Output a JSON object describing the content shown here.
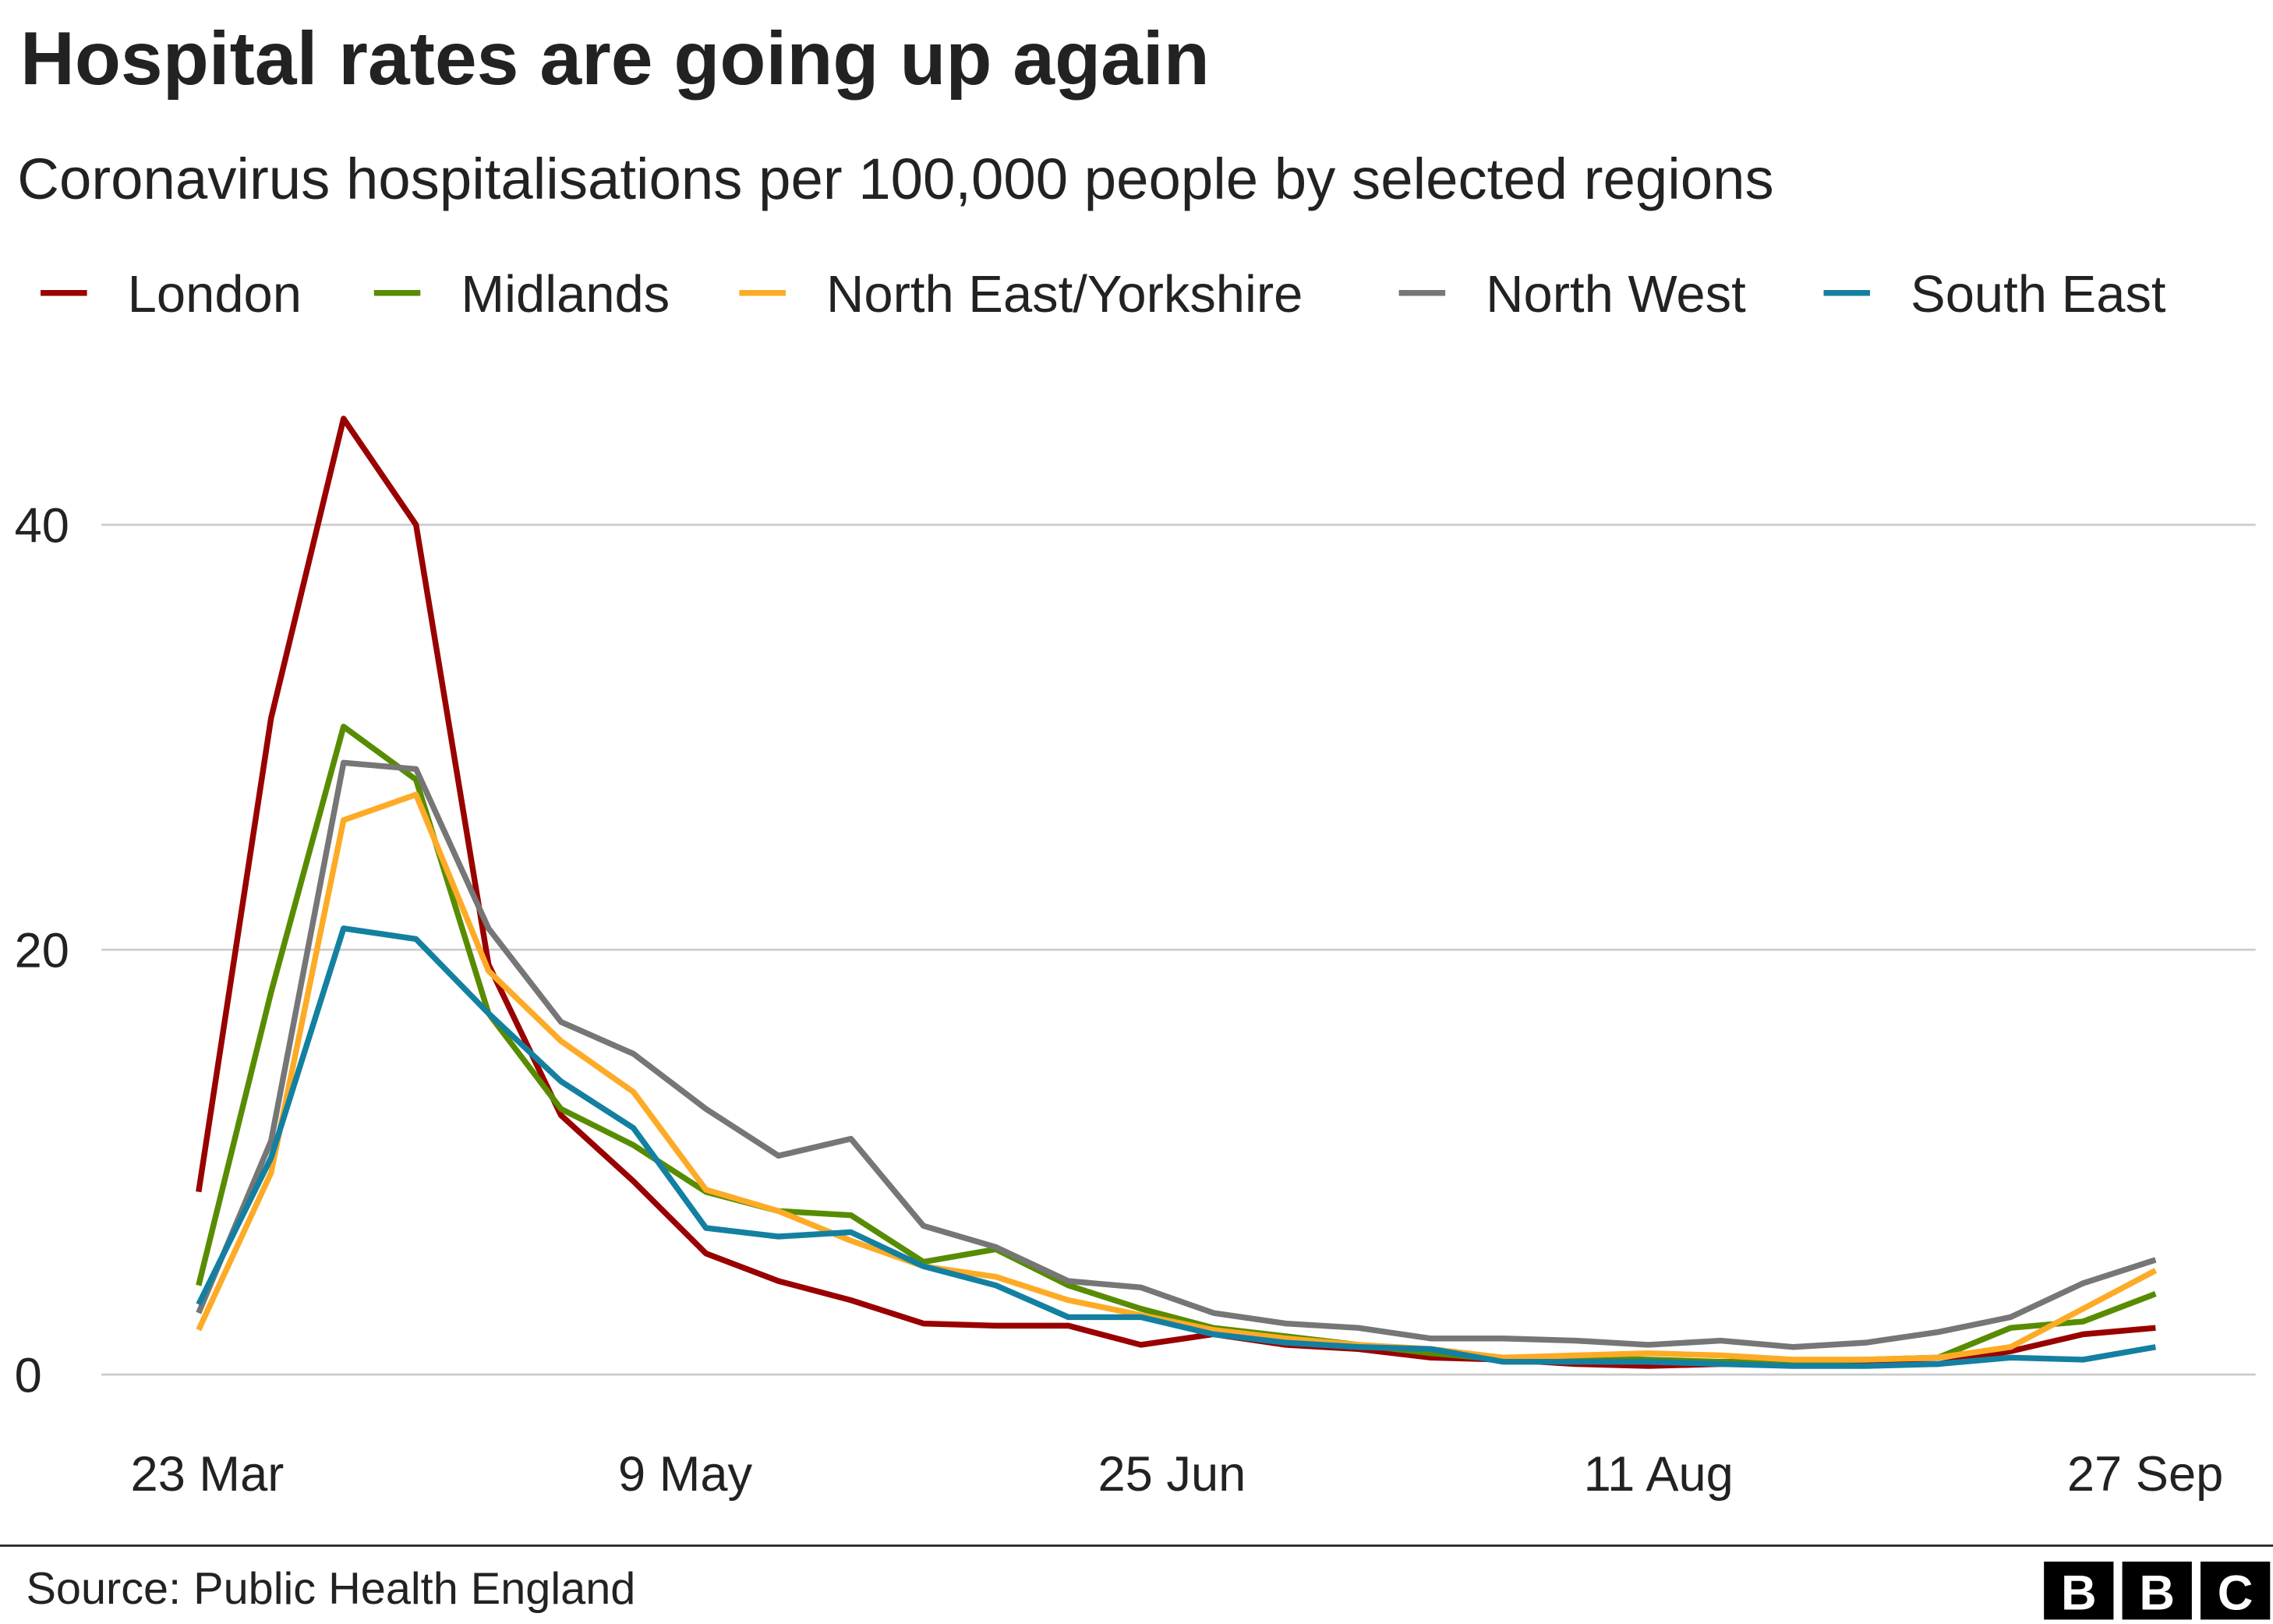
{
  "chart_data": {
    "type": "line",
    "title": "Hospital rates are going up again",
    "subtitle": "Coronavirus hospitalisations per 100,000 people by selected regions",
    "source": "Source: Public Health England",
    "logo": [
      "B",
      "B",
      "C"
    ],
    "x": [
      "23 Mar",
      "30 Mar",
      "6 Apr",
      "13 Apr",
      "20 Apr",
      "27 Apr",
      "4 May",
      "11 May",
      "18 May",
      "25 May",
      "1 Jun",
      "8 Jun",
      "15 Jun",
      "22 Jun",
      "29 Jun",
      "6 Jul",
      "13 Jul",
      "20 Jul",
      "27 Jul",
      "3 Aug",
      "10 Aug",
      "17 Aug",
      "24 Aug",
      "31 Aug",
      "7 Sep",
      "14 Sep",
      "21 Sep",
      "28 Sep"
    ],
    "xlim": [
      "23 Mar",
      "28 Sep"
    ],
    "xticks": [
      "23 Mar",
      "9 May",
      "25 Jun",
      "11 Aug",
      "27 Sep"
    ],
    "ylim": [
      0,
      46
    ],
    "yticks": [
      0,
      20,
      40
    ],
    "grid": true,
    "legend": "top",
    "series": [
      {
        "name": "London",
        "color": "#990000",
        "values": [
          8.6,
          30.9,
          45,
          40,
          19.3,
          12.2,
          9.1,
          5.7,
          4.4,
          3.5,
          2.4,
          2.3,
          2.3,
          1.4,
          1.9,
          1.4,
          1.2,
          0.8,
          0.7,
          0.5,
          0.4,
          0.5,
          0.5,
          0.5,
          0.5,
          1.1,
          1.9,
          2.2
        ]
      },
      {
        "name": "Midlands",
        "color": "#588c00",
        "values": [
          4.2,
          18,
          30.5,
          28,
          17,
          12.5,
          10.8,
          8.6,
          7.7,
          7.5,
          5.3,
          5.9,
          4.2,
          3.1,
          2.2,
          1.8,
          1.4,
          1.0,
          0.7,
          0.8,
          0.7,
          0.6,
          0.6,
          0.7,
          0.8,
          2.2,
          2.5,
          3.8
        ]
      },
      {
        "name": "North East/Yorkshire",
        "color": "#fdab27",
        "values": [
          2.1,
          9.5,
          26.1,
          27.3,
          19,
          15.7,
          13.3,
          8.7,
          7.7,
          6.3,
          5.1,
          4.6,
          3.5,
          2.8,
          2.1,
          1.7,
          1.4,
          1.2,
          0.8,
          0.9,
          1.0,
          0.9,
          0.7,
          0.7,
          0.8,
          1.3,
          3.1,
          4.9
        ]
      },
      {
        "name": "North West",
        "color": "#767676",
        "values": [
          2.9,
          11,
          28.8,
          28.5,
          21,
          16.6,
          15.1,
          12.5,
          10.3,
          11.1,
          7,
          6,
          4.4,
          4.1,
          2.9,
          2.4,
          2.2,
          1.7,
          1.7,
          1.6,
          1.4,
          1.6,
          1.3,
          1.5,
          2.0,
          2.7,
          4.3,
          5.4
        ]
      },
      {
        "name": "South East",
        "color": "#1380a1",
        "values": [
          3.3,
          10.2,
          21,
          20.5,
          17,
          13.8,
          11.6,
          6.9,
          6.5,
          6.7,
          5.1,
          4.2,
          2.7,
          2.7,
          1.9,
          1.5,
          1.3,
          1.2,
          0.6,
          0.6,
          0.6,
          0.5,
          0.4,
          0.4,
          0.5,
          0.8,
          0.7,
          1.3
        ]
      }
    ]
  }
}
